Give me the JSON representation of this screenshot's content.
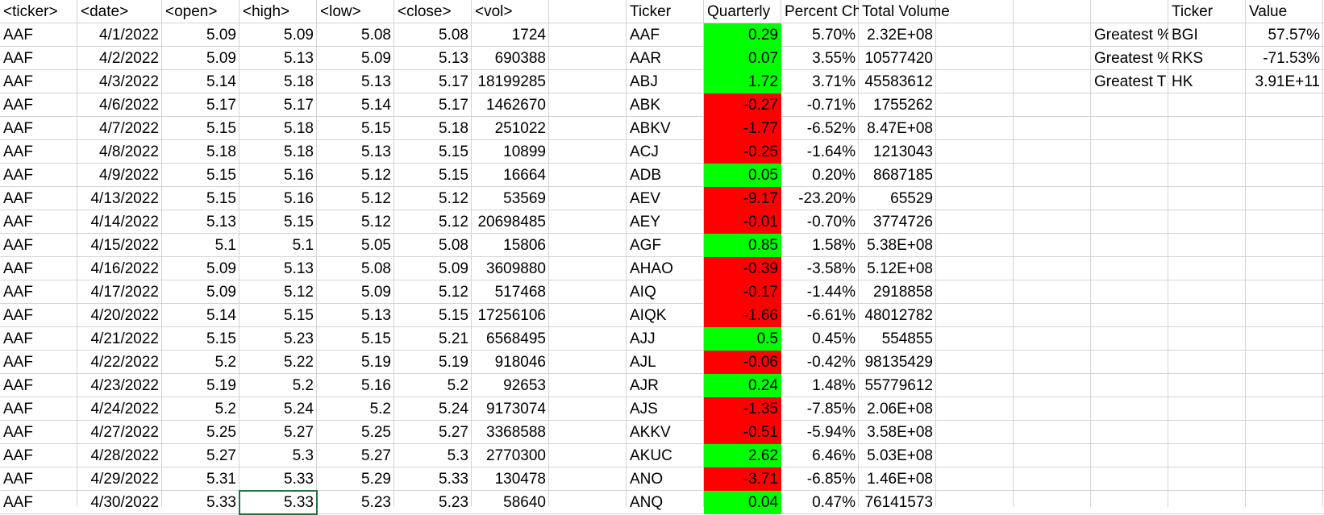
{
  "colors": {
    "positive": "#00ff00",
    "negative": "#ff0000",
    "selection": "#217346",
    "gridline": "#d4d4d4"
  },
  "raw_headers": [
    "<ticker>",
    "<date>",
    "<open>",
    "<high>",
    "<low>",
    "<close>",
    "<vol>"
  ],
  "raw_rows": [
    [
      "AAF",
      "4/1/2022",
      "5.09",
      "5.09",
      "5.08",
      "5.08",
      "1724"
    ],
    [
      "AAF",
      "4/2/2022",
      "5.09",
      "5.13",
      "5.09",
      "5.13",
      "690388"
    ],
    [
      "AAF",
      "4/3/2022",
      "5.14",
      "5.18",
      "5.13",
      "5.17",
      "18199285"
    ],
    [
      "AAF",
      "4/6/2022",
      "5.17",
      "5.17",
      "5.14",
      "5.17",
      "1462670"
    ],
    [
      "AAF",
      "4/7/2022",
      "5.15",
      "5.18",
      "5.15",
      "5.18",
      "251022"
    ],
    [
      "AAF",
      "4/8/2022",
      "5.18",
      "5.18",
      "5.13",
      "5.15",
      "10899"
    ],
    [
      "AAF",
      "4/9/2022",
      "5.15",
      "5.16",
      "5.12",
      "5.15",
      "16664"
    ],
    [
      "AAF",
      "4/13/2022",
      "5.15",
      "5.16",
      "5.12",
      "5.12",
      "53569"
    ],
    [
      "AAF",
      "4/14/2022",
      "5.13",
      "5.15",
      "5.12",
      "5.12",
      "20698485"
    ],
    [
      "AAF",
      "4/15/2022",
      "5.1",
      "5.1",
      "5.05",
      "5.08",
      "15806"
    ],
    [
      "AAF",
      "4/16/2022",
      "5.09",
      "5.13",
      "5.08",
      "5.09",
      "3609880"
    ],
    [
      "AAF",
      "4/17/2022",
      "5.09",
      "5.12",
      "5.09",
      "5.12",
      "517468"
    ],
    [
      "AAF",
      "4/20/2022",
      "5.14",
      "5.15",
      "5.13",
      "5.15",
      "17256106"
    ],
    [
      "AAF",
      "4/21/2022",
      "5.15",
      "5.23",
      "5.15",
      "5.21",
      "6568495"
    ],
    [
      "AAF",
      "4/22/2022",
      "5.2",
      "5.22",
      "5.19",
      "5.19",
      "918046"
    ],
    [
      "AAF",
      "4/23/2022",
      "5.19",
      "5.2",
      "5.16",
      "5.2",
      "92653"
    ],
    [
      "AAF",
      "4/24/2022",
      "5.2",
      "5.24",
      "5.2",
      "5.24",
      "9173074"
    ],
    [
      "AAF",
      "4/27/2022",
      "5.25",
      "5.27",
      "5.25",
      "5.27",
      "3368588"
    ],
    [
      "AAF",
      "4/28/2022",
      "5.27",
      "5.3",
      "5.27",
      "5.3",
      "2770300"
    ],
    [
      "AAF",
      "4/29/2022",
      "5.31",
      "5.33",
      "5.29",
      "5.33",
      "130478"
    ],
    [
      "AAF",
      "4/30/2022",
      "5.33",
      "5.33",
      "5.23",
      "5.23",
      "58640"
    ]
  ],
  "summary_headers": [
    "Ticker",
    "Quarterly",
    "Percent Ch",
    "Total Volume"
  ],
  "summary_rows": [
    [
      "AAF",
      "0.29",
      "5.70%",
      "2.32E+08"
    ],
    [
      "AAR",
      "0.07",
      "3.55%",
      "10577420"
    ],
    [
      "ABJ",
      "1.72",
      "3.71%",
      "45583612"
    ],
    [
      "ABK",
      "-0.27",
      "-0.71%",
      "1755262"
    ],
    [
      "ABKV",
      "-1.77",
      "-6.52%",
      "8.47E+08"
    ],
    [
      "ACJ",
      "-0.25",
      "-1.64%",
      "1213043"
    ],
    [
      "ADB",
      "0.05",
      "0.20%",
      "8687185"
    ],
    [
      "AEV",
      "-9.17",
      "-23.20%",
      "65529"
    ],
    [
      "AEY",
      "-0.01",
      "-0.70%",
      "3774726"
    ],
    [
      "AGF",
      "0.85",
      "1.58%",
      "5.38E+08"
    ],
    [
      "AHAO",
      "-0.39",
      "-3.58%",
      "5.12E+08"
    ],
    [
      "AIQ",
      "-0.17",
      "-1.44%",
      "2918858"
    ],
    [
      "AIQK",
      "-1.66",
      "-6.61%",
      "48012782"
    ],
    [
      "AJJ",
      "0.5",
      "0.45%",
      "554855"
    ],
    [
      "AJL",
      "-0.06",
      "-0.42%",
      "98135429"
    ],
    [
      "AJR",
      "0.24",
      "1.48%",
      "55779612"
    ],
    [
      "AJS",
      "-1.35",
      "-7.85%",
      "2.06E+08"
    ],
    [
      "AKKV",
      "-0.51",
      "-5.94%",
      "3.58E+08"
    ],
    [
      "AKUC",
      "2.62",
      "6.46%",
      "5.03E+08"
    ],
    [
      "ANO",
      "-3.71",
      "-6.85%",
      "1.46E+08"
    ],
    [
      "ANQ",
      "0.04",
      "0.47%",
      "76141573"
    ]
  ],
  "greatest_headers": [
    "Ticker",
    "Value"
  ],
  "greatest_rows": [
    [
      "Greatest %",
      "BGI",
      "57.57%"
    ],
    [
      "Greatest %",
      "RKS",
      "-71.53%"
    ],
    [
      "Greatest T",
      "HK",
      "3.91E+11"
    ]
  ]
}
